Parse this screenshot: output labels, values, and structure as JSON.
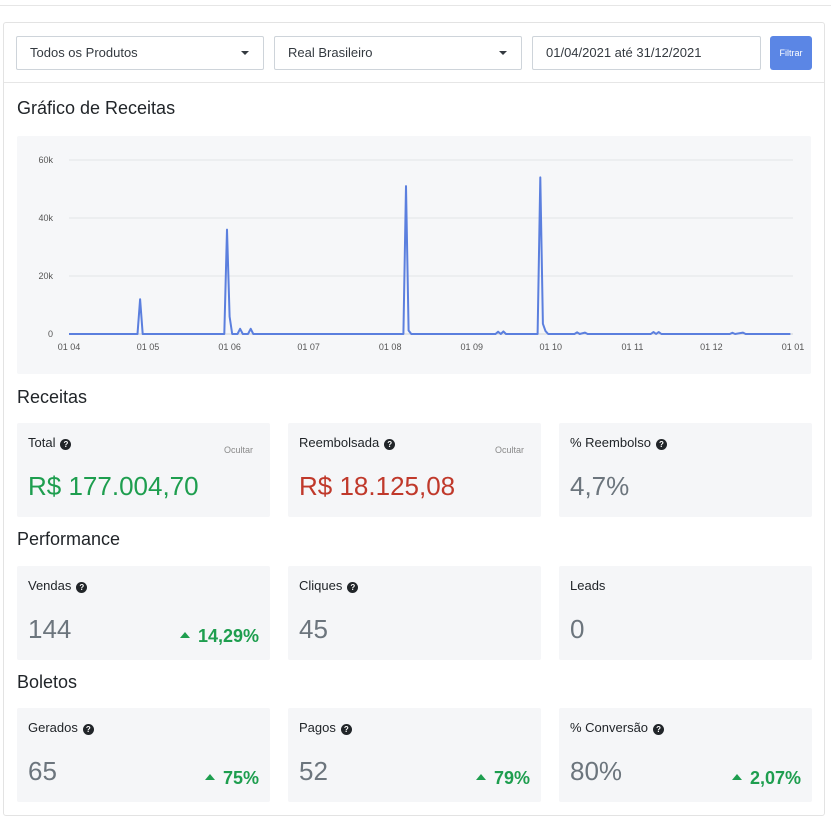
{
  "filters": {
    "product": "Todos os Produtos",
    "currency": "Real Brasileiro",
    "date_range": "01/04/2021 até 31/12/2021",
    "filter_button": "Filtrar"
  },
  "chart_title": "Gráfico de Receitas",
  "chart_data": {
    "type": "line",
    "title": "",
    "xlabel": "",
    "ylabel": "",
    "x_ticks": [
      "01 04",
      "01 05",
      "01 06",
      "01 07",
      "01 08",
      "01 09",
      "01 10",
      "01 11",
      "01 12",
      "01 01"
    ],
    "y_ticks": [
      "0",
      "20k",
      "40k",
      "60k"
    ],
    "ylim": [
      0,
      60000
    ],
    "xlim": [
      "2021-04-01",
      "2022-01-01"
    ],
    "grid": true,
    "line_color": "#5b7fde",
    "series": [
      {
        "points": [
          [
            "2021-04-01",
            0
          ],
          [
            "2021-04-27",
            0
          ],
          [
            "2021-04-28",
            12000
          ],
          [
            "2021-04-29",
            0
          ],
          [
            "2021-05-30",
            0
          ],
          [
            "2021-05-31",
            36000
          ],
          [
            "2021-06-01",
            6000
          ],
          [
            "2021-06-02",
            0
          ],
          [
            "2021-06-04",
            0
          ],
          [
            "2021-06-05",
            1800
          ],
          [
            "2021-06-06",
            0
          ],
          [
            "2021-06-08",
            0
          ],
          [
            "2021-06-09",
            1800
          ],
          [
            "2021-06-10",
            0
          ],
          [
            "2021-08-06",
            0
          ],
          [
            "2021-08-07",
            51000
          ],
          [
            "2021-08-08",
            1200
          ],
          [
            "2021-08-09",
            0
          ],
          [
            "2021-09-10",
            0
          ],
          [
            "2021-09-11",
            800
          ],
          [
            "2021-09-12",
            0
          ],
          [
            "2021-09-13",
            900
          ],
          [
            "2021-09-14",
            0
          ],
          [
            "2021-09-26",
            0
          ],
          [
            "2021-09-27",
            54000
          ],
          [
            "2021-09-28",
            3500
          ],
          [
            "2021-09-29",
            1000
          ],
          [
            "2021-09-30",
            0
          ],
          [
            "2021-10-10",
            0
          ],
          [
            "2021-10-11",
            600
          ],
          [
            "2021-10-12",
            0
          ],
          [
            "2021-10-14",
            500
          ],
          [
            "2021-10-15",
            0
          ],
          [
            "2021-11-08",
            0
          ],
          [
            "2021-11-09",
            700
          ],
          [
            "2021-11-10",
            0
          ],
          [
            "2021-11-11",
            700
          ],
          [
            "2021-11-12",
            0
          ],
          [
            "2021-12-08",
            0
          ],
          [
            "2021-12-09",
            400
          ],
          [
            "2021-12-10",
            0
          ],
          [
            "2021-12-13",
            500
          ],
          [
            "2021-12-14",
            0
          ],
          [
            "2021-12-31",
            0
          ]
        ]
      }
    ]
  },
  "receitas": {
    "title": "Receitas",
    "total_label": "Total",
    "total_value": "R$ 177.004,70",
    "total_hide": "Ocultar",
    "refunded_label": "Reembolsada",
    "refunded_value": "R$ 18.125,08",
    "refunded_hide": "Ocultar",
    "refund_pct_label": "% Reembolso",
    "refund_pct_value": "4,7%"
  },
  "performance": {
    "title": "Performance",
    "sales_label": "Vendas",
    "sales_value": "144",
    "sales_delta": "14,29%",
    "clicks_label": "Cliques",
    "clicks_value": "45",
    "leads_label": "Leads",
    "leads_value": "0"
  },
  "boletos": {
    "title": "Boletos",
    "generated_label": "Gerados",
    "generated_value": "65",
    "generated_delta": "75%",
    "paid_label": "Pagos",
    "paid_value": "52",
    "paid_delta": "79%",
    "conversion_label": "% Conversão",
    "conversion_value": "80%",
    "conversion_delta": "2,07%"
  },
  "colors": {
    "positive": "#1e9e4f",
    "negative": "#c0392b",
    "accent": "#5b86e5"
  }
}
